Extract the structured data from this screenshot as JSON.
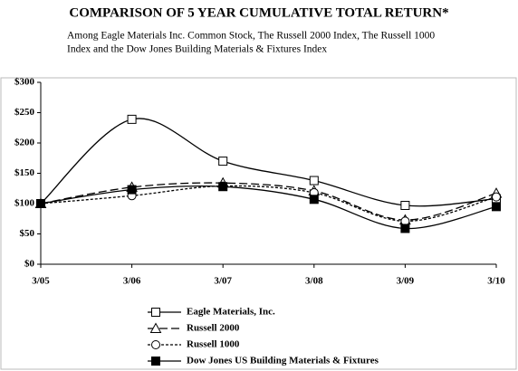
{
  "chart_data": {
    "type": "line",
    "title": "COMPARISON OF 5 YEAR CUMULATIVE TOTAL RETURN*",
    "subtitle": [
      "Among Eagle Materials Inc. Common Stock, The Russell 2000 Index, The Russell 1000",
      "Index and the Dow Jones Building Materials & Fixtures Index"
    ],
    "categories": [
      "3/05",
      "3/06",
      "3/07",
      "3/08",
      "3/09",
      "3/10"
    ],
    "ylim": [
      0,
      300
    ],
    "yticks": [
      {
        "value": 0,
        "label": "$0"
      },
      {
        "value": 50,
        "label": "$50"
      },
      {
        "value": 100,
        "label": "$100"
      },
      {
        "value": 150,
        "label": "$150"
      },
      {
        "value": 200,
        "label": "$200"
      },
      {
        "value": 250,
        "label": "$250"
      },
      {
        "value": 300,
        "label": "$300"
      }
    ],
    "grid": false,
    "smooth": true,
    "legend": "bottom",
    "series": [
      {
        "name": "Eagle Materials, Inc.",
        "color": "#000000",
        "dash": "none",
        "marker": "square-open",
        "values": [
          100,
          239,
          170,
          138,
          97,
          108
        ]
      },
      {
        "name": "Russell 2000",
        "color": "#000000",
        "dash": "9,4",
        "marker": "triangle-open",
        "values": [
          100,
          127,
          134,
          121,
          73,
          117
        ]
      },
      {
        "name": "Russell 1000",
        "color": "#000000",
        "dash": "3,2",
        "marker": "circle-open",
        "values": [
          100,
          113,
          129,
          118,
          71,
          111
        ]
      },
      {
        "name": "Dow Jones US Building Materials & Fixtures",
        "color": "#000000",
        "dash": "none",
        "marker": "square-filled",
        "values": [
          100,
          123,
          128,
          107,
          59,
          95
        ]
      }
    ]
  }
}
